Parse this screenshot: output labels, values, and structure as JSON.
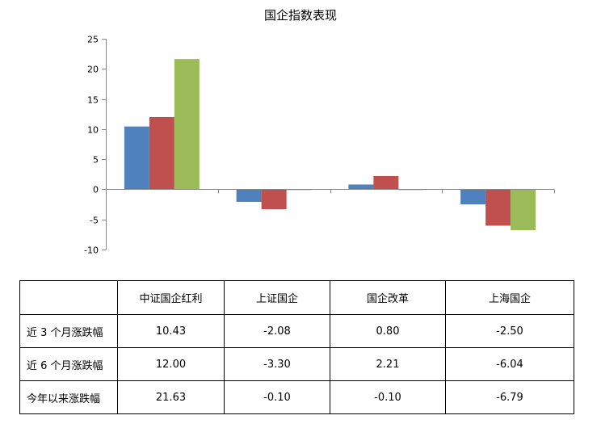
{
  "chart_data": {
    "type": "bar",
    "title": "国企指数表现",
    "categories": [
      "中证国企红利",
      "上证国企",
      "国企改革",
      "上海国企"
    ],
    "series": [
      {
        "name": "近 3 个月涨跌幅",
        "color": "#4f81bd",
        "values": [
          10.43,
          -2.08,
          0.8,
          -2.5
        ]
      },
      {
        "name": "近 6 个月涨跌幅",
        "color": "#c0504d",
        "values": [
          12.0,
          -3.3,
          2.21,
          -6.04
        ]
      },
      {
        "name": "今年以来涨跌幅",
        "color": "#9bbb59",
        "values": [
          21.63,
          -0.1,
          -0.1,
          -6.79
        ]
      }
    ],
    "ylim": [
      -10,
      25
    ],
    "yticks": [
      "25",
      "20",
      "15",
      "10",
      "5",
      "0",
      "-5",
      "-10"
    ],
    "xlabel": "",
    "ylabel": "",
    "grid": false,
    "legend": "none"
  },
  "table": {
    "corner": "",
    "headers": [
      "中证国企红利",
      "上证国企",
      "国企改革",
      "上海国企"
    ],
    "rows": [
      {
        "label": "近 3 个月涨跌幅",
        "cells": [
          "10.43",
          "-2.08",
          "0.80",
          "-2.50"
        ]
      },
      {
        "label": "近 6 个月涨跌幅",
        "cells": [
          "12.00",
          "-3.30",
          "2.21",
          "-6.04"
        ]
      },
      {
        "label": "今年以来涨跌幅",
        "cells": [
          "21.63",
          "-0.10",
          "-0.10",
          "-6.79"
        ]
      }
    ]
  }
}
